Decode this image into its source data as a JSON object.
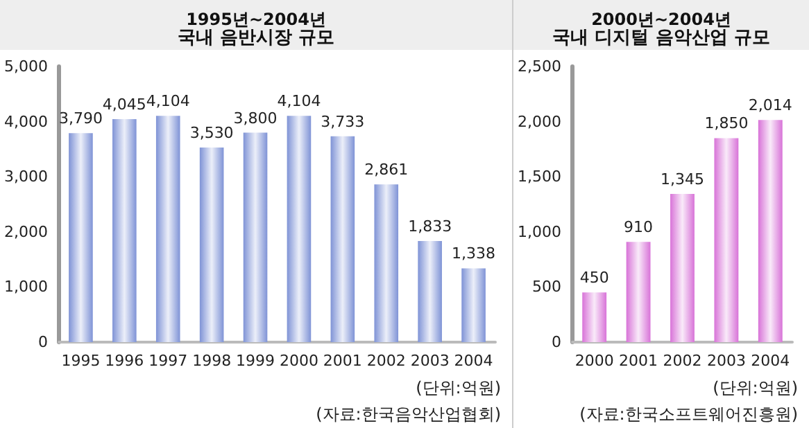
{
  "chart_data": [
    {
      "type": "bar",
      "title": "1995년~2004년",
      "subtitle": "국내 음반시장 규모",
      "categories": [
        "1995",
        "1996",
        "1997",
        "1998",
        "1999",
        "2000",
        "2001",
        "2002",
        "2003",
        "2004"
      ],
      "values": [
        3790,
        4045,
        4104,
        3530,
        3800,
        4104,
        3733,
        2861,
        1833,
        1338
      ],
      "value_labels": [
        "3,790",
        "4,045",
        "4,104",
        "3,530",
        "3,800",
        "4,104",
        "3,733",
        "2,861",
        "1,833",
        "1,338"
      ],
      "color": "#7f93d6",
      "ylim": [
        0,
        5000
      ],
      "yticks": [
        {
          "value": 0,
          "label": "0"
        },
        {
          "value": 1000,
          "label": "1,000"
        },
        {
          "value": 2000,
          "label": "2,000"
        },
        {
          "value": 3000,
          "label": "3,000"
        },
        {
          "value": 4000,
          "label": "4,000"
        },
        {
          "value": 5000,
          "label": "5,000"
        }
      ],
      "grid": false,
      "annotations": [
        "(단위:억원)",
        "(자료:한국음악산업협회)"
      ]
    },
    {
      "type": "bar",
      "title": "2000년~2004년",
      "subtitle": "국내 디지털 음악산업 규모",
      "categories": [
        "2000",
        "2001",
        "2002",
        "2003",
        "2004"
      ],
      "values": [
        450,
        910,
        1345,
        1850,
        2014
      ],
      "value_labels": [
        "450",
        "910",
        "1,345",
        "1,850",
        "2,014"
      ],
      "color": "#d873d8",
      "ylim": [
        0,
        2500
      ],
      "yticks": [
        {
          "value": 0,
          "label": "0"
        },
        {
          "value": 500,
          "label": "500"
        },
        {
          "value": 1000,
          "label": "1,000"
        },
        {
          "value": 1500,
          "label": "1,500"
        },
        {
          "value": 2000,
          "label": "2,000"
        },
        {
          "value": 2500,
          "label": "2,500"
        }
      ],
      "grid": false,
      "annotations": [
        "(단위:억원)",
        "(자료:한국소프트웨어진흥원)"
      ]
    }
  ]
}
